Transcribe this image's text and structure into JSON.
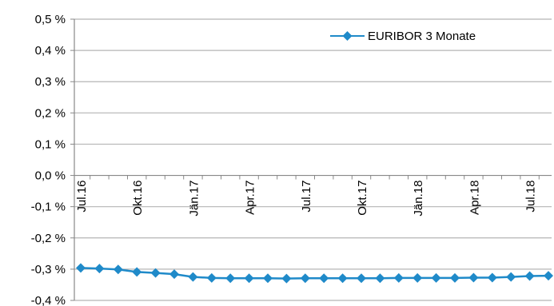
{
  "chart_data": {
    "type": "line",
    "title": "",
    "xlabel": "",
    "ylabel": "",
    "ylim": [
      -0.4,
      0.5
    ],
    "y_ticks": [
      0.5,
      0.4,
      0.3,
      0.2,
      0.1,
      0.0,
      -0.1,
      -0.2,
      -0.3,
      -0.4
    ],
    "y_tick_labels": [
      "0,5 %",
      "0,4 %",
      "0,3 %",
      "0,2 %",
      "0,1 %",
      "0,0 %",
      "-0,1 %",
      "-0,2 %",
      "-0,3 %",
      "-0,4 %"
    ],
    "x_tick_labels": [
      "Jul.16",
      "Okt.16",
      "Jän.17",
      "Apr.17",
      "Jul.17",
      "Okt.17",
      "Jän.18",
      "Apr.18",
      "Jul.18"
    ],
    "x_tick_every": 3,
    "grid": true,
    "legend_position": "top-right",
    "series": [
      {
        "name": "EURIBOR 3 Monate",
        "color": "#1f8ac9",
        "marker": "diamond",
        "values": [
          -0.296,
          -0.298,
          -0.301,
          -0.309,
          -0.312,
          -0.316,
          -0.325,
          -0.328,
          -0.329,
          -0.329,
          -0.329,
          -0.33,
          -0.329,
          -0.329,
          -0.329,
          -0.329,
          -0.329,
          -0.328,
          -0.328,
          -0.328,
          -0.328,
          -0.327,
          -0.327,
          -0.325,
          -0.322,
          -0.321
        ]
      }
    ]
  }
}
